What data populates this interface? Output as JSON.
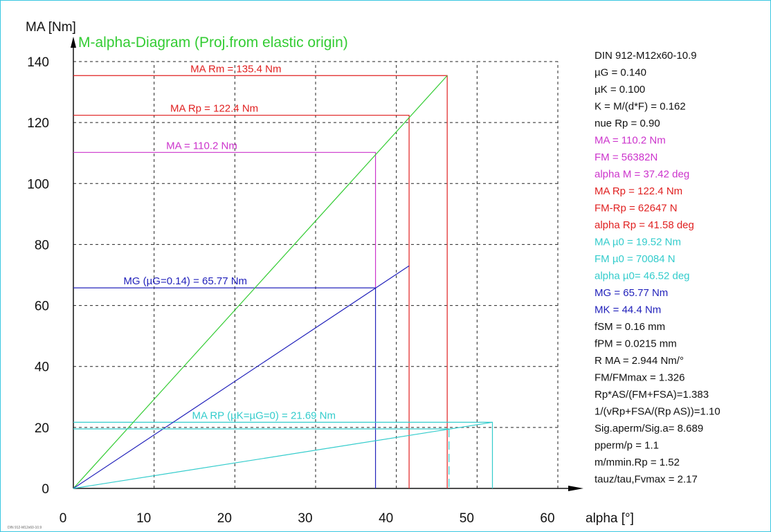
{
  "chart_data": {
    "type": "line",
    "title": "M-alpha-Diagram (Proj.from elastic origin)",
    "xlabel": "alpha [°]",
    "ylabel": "MA [Nm]",
    "xlim": [
      0,
      60
    ],
    "ylim": [
      0,
      140
    ],
    "x_ticks": [
      "0",
      "10",
      "20",
      "30",
      "40",
      "50",
      "60"
    ],
    "y_ticks": [
      "0",
      "20",
      "40",
      "60",
      "80",
      "100",
      "120",
      "140"
    ],
    "grid": true,
    "footer": "DIN 912-M12x60-10.9",
    "colors": {
      "green": "#33cc33",
      "red": "#e02020",
      "magenta": "#cc33cc",
      "blue": "#2222bb",
      "cyan": "#33cccc",
      "black": "#111111"
    },
    "series": [
      {
        "name": "MA Rm = 135.4 Nm",
        "color_key": "red",
        "points": [
          [
            0,
            135.4
          ],
          [
            46.3,
            135.4
          ],
          [
            46.3,
            0
          ]
        ]
      },
      {
        "name": "MA Rp = 122.4 Nm",
        "color_key": "red",
        "points": [
          [
            0,
            122.4
          ],
          [
            41.58,
            122.4
          ],
          [
            41.58,
            0
          ]
        ]
      },
      {
        "name": "MA = 110.2 Nm",
        "color_key": "magenta",
        "points": [
          [
            0,
            110.2
          ],
          [
            37.42,
            110.2
          ],
          [
            37.42,
            65.77
          ]
        ]
      },
      {
        "name": "MG (µG=0.14) = 65.77 Nm",
        "color_key": "blue",
        "points": [
          [
            0,
            65.77
          ],
          [
            37.42,
            65.77
          ],
          [
            37.42,
            0
          ]
        ]
      },
      {
        "name": "MA RP (µK=µG=0) = 21.69 Nm",
        "color_key": "cyan",
        "points": [
          [
            0,
            21.69
          ],
          [
            51.9,
            21.69
          ],
          [
            51.9,
            0
          ]
        ]
      },
      {
        "name": "",
        "color_key": "green",
        "points": [
          [
            0,
            0
          ],
          [
            46.3,
            135.4
          ]
        ]
      },
      {
        "name": "",
        "color_key": "blue",
        "points": [
          [
            0,
            0
          ],
          [
            41.58,
            73.0
          ]
        ]
      },
      {
        "name": "",
        "color_key": "cyan",
        "points": [
          [
            0,
            0
          ],
          [
            51.9,
            21.69
          ]
        ]
      },
      {
        "name": "",
        "color_key": "cyan",
        "points": [
          [
            0,
            19.52
          ],
          [
            46.52,
            19.52
          ]
        ]
      },
      {
        "name": "",
        "color_key": "cyan",
        "dashed": true,
        "points": [
          [
            46.52,
            19.52
          ],
          [
            46.52,
            0
          ]
        ]
      }
    ],
    "labels": [
      {
        "text": "MA Rm = 135.4 Nm",
        "color_key": "red",
        "x": 14.5,
        "y": 135.4
      },
      {
        "text": "MA Rp = 122.4 Nm",
        "color_key": "red",
        "x": 12,
        "y": 122.4
      },
      {
        "text": "MA = 110.2 Nm",
        "color_key": "magenta",
        "x": 11.5,
        "y": 110.2
      },
      {
        "text": "MG (µG=0.14) = 65.77 Nm",
        "color_key": "blue",
        "x": 6.2,
        "y": 65.77
      },
      {
        "text": "MA RP (µK=µG=0) = 21.69 Nm",
        "color_key": "cyan",
        "x": 14.7,
        "y": 21.69
      }
    ],
    "info_lines": [
      {
        "text": "DIN 912-M12x60-10.9",
        "color_key": "black"
      },
      {
        "text": "µG = 0.140",
        "color_key": "black"
      },
      {
        "text": "µK = 0.100",
        "color_key": "black"
      },
      {
        "text": "K = M/(d*F) = 0.162",
        "color_key": "black"
      },
      {
        "text": "nue Rp = 0.90",
        "color_key": "black"
      },
      {
        "text": "MA = 110.2 Nm",
        "color_key": "magenta"
      },
      {
        "text": "FM = 56382N",
        "color_key": "magenta"
      },
      {
        "text": "alpha M = 37.42 deg",
        "color_key": "magenta"
      },
      {
        "text": "MA Rp = 122.4 Nm",
        "color_key": "red"
      },
      {
        "text": "FM-Rp = 62647 N",
        "color_key": "red"
      },
      {
        "text": "alpha Rp = 41.58 deg",
        "color_key": "red"
      },
      {
        "text": "MA µ0 = 19.52 Nm",
        "color_key": "cyan"
      },
      {
        "text": "FM µ0 = 70084 N",
        "color_key": "cyan"
      },
      {
        "text": "alpha µ0= 46.52 deg",
        "color_key": "cyan"
      },
      {
        "text": "MG = 65.77 Nm",
        "color_key": "blue"
      },
      {
        "text": "MK = 44.4 Nm",
        "color_key": "blue"
      },
      {
        "text": "fSM = 0.16 mm",
        "color_key": "black"
      },
      {
        "text": "fPM = 0.0215 mm",
        "color_key": "black"
      },
      {
        "text": "R MA = 2.944 Nm/°",
        "color_key": "black"
      },
      {
        "text": "FM/FMmax = 1.326",
        "color_key": "black"
      },
      {
        "text": "Rp*AS/(FM+FSA)=1.383",
        "color_key": "black"
      },
      {
        "text": "1/(vRp+FSA/(Rp AS))=1.10",
        "color_key": "black"
      },
      {
        "text": "Sig.aperm/Sig.a= 8.689",
        "color_key": "black"
      },
      {
        "text": "pperm/p = 1.1",
        "color_key": "black"
      },
      {
        "text": "m/mmin.Rp = 1.52",
        "color_key": "black"
      },
      {
        "text": "tauz/tau,Fvmax = 2.17",
        "color_key": "black"
      }
    ]
  }
}
